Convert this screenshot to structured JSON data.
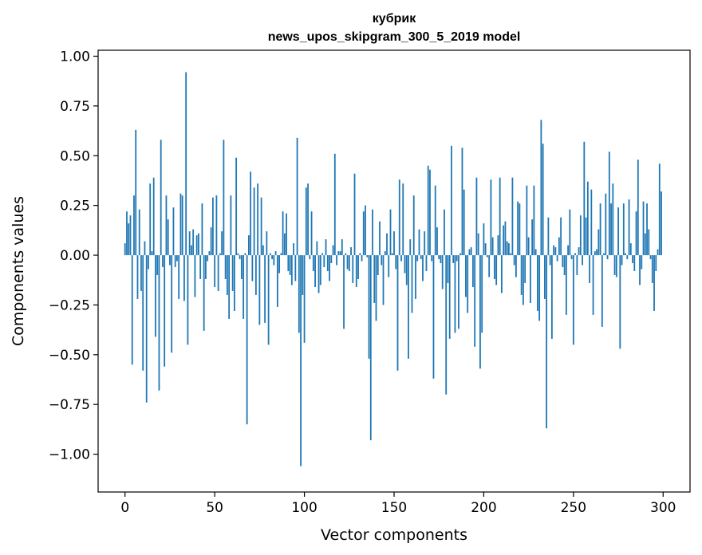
{
  "chart_data": {
    "type": "bar",
    "title_line1": "кубрик",
    "title_line2": "news_upos_skipgram_300_5_2019 model",
    "xlabel": "Vector components",
    "ylabel": "Components values",
    "xlim": [
      -15,
      315
    ],
    "ylim": [
      -1.19,
      1.03
    ],
    "xticks": [
      0,
      50,
      100,
      150,
      200,
      250,
      300
    ],
    "yticks": [
      -1.0,
      -0.75,
      -0.5,
      -0.25,
      0.0,
      0.25,
      0.5,
      0.75,
      1.0
    ],
    "xtick_labels": [
      "0",
      "50",
      "100",
      "150",
      "200",
      "250",
      "300"
    ],
    "ytick_labels": [
      "−1.00",
      "−0.75",
      "−0.50",
      "−0.25",
      "0.00",
      "0.25",
      "0.50",
      "0.75",
      "1.00"
    ],
    "bar_color": "#1f77b4",
    "grid": false,
    "values": [
      0.06,
      0.22,
      0.16,
      0.2,
      -0.55,
      0.3,
      0.63,
      -0.22,
      0.23,
      -0.18,
      -0.58,
      0.07,
      -0.74,
      -0.07,
      0.36,
      0.02,
      0.39,
      -0.41,
      -0.1,
      -0.68,
      0.58,
      -0.06,
      -0.56,
      0.3,
      0.18,
      -0.05,
      -0.49,
      0.24,
      -0.06,
      -0.03,
      -0.22,
      0.31,
      0.3,
      -0.23,
      0.92,
      -0.45,
      0.12,
      0.05,
      0.13,
      -0.21,
      0.1,
      0.11,
      -0.12,
      0.26,
      -0.38,
      -0.12,
      -0.03,
      0.02,
      0.14,
      0.29,
      -0.16,
      0.3,
      -0.18,
      0.01,
      0.12,
      0.58,
      -0.12,
      -0.2,
      -0.32,
      0.3,
      -0.18,
      -0.28,
      0.49,
      0.01,
      -0.02,
      -0.12,
      -0.32,
      0.01,
      -0.85,
      0.1,
      0.42,
      -0.13,
      0.34,
      -0.2,
      0.36,
      -0.35,
      0.29,
      0.05,
      -0.34,
      0.12,
      -0.45,
      0.01,
      -0.02,
      -0.05,
      0.02,
      -0.26,
      -0.09,
      0.01,
      0.22,
      0.11,
      0.21,
      -0.08,
      -0.1,
      -0.15,
      0.06,
      -0.13,
      0.59,
      -0.39,
      -1.06,
      -0.2,
      -0.44,
      0.34,
      0.36,
      -0.02,
      0.22,
      -0.08,
      -0.16,
      0.07,
      -0.19,
      -0.15,
      0.01,
      -0.06,
      0.08,
      -0.08,
      -0.13,
      -0.04,
      0.05,
      0.51,
      -0.05,
      0.02,
      0.02,
      0.08,
      -0.37,
      0.01,
      -0.07,
      -0.08,
      0.04,
      -0.14,
      0.41,
      -0.16,
      -0.12,
      0.01,
      -0.03,
      0.22,
      0.25,
      -0.01,
      -0.52,
      -0.93,
      0.23,
      -0.24,
      -0.33,
      -0.1,
      0.17,
      -0.05,
      -0.25,
      0.02,
      0.11,
      -0.11,
      0.23,
      0.01,
      0.12,
      -0.07,
      -0.58,
      0.38,
      -0.03,
      0.36,
      -0.09,
      -0.15,
      -0.52,
      0.08,
      -0.29,
      0.3,
      -0.22,
      -0.03,
      0.13,
      -0.02,
      -0.13,
      0.12,
      -0.08,
      0.45,
      0.43,
      -0.03,
      -0.62,
      0.35,
      0.14,
      -0.02,
      -0.04,
      -0.17,
      0.23,
      -0.7,
      -0.14,
      -0.42,
      0.55,
      -0.04,
      -0.39,
      -0.03,
      -0.37,
      0.01,
      0.54,
      0.33,
      -0.21,
      -0.29,
      0.03,
      0.04,
      -0.16,
      -0.46,
      0.39,
      0.11,
      -0.57,
      -0.39,
      0.16,
      0.06,
      -0.01,
      -0.11,
      0.38,
      0.09,
      -0.12,
      -0.15,
      0.1,
      0.39,
      -0.19,
      0.15,
      0.17,
      0.07,
      0.06,
      0.01,
      0.39,
      -0.05,
      -0.11,
      0.27,
      0.26,
      -0.2,
      -0.25,
      -0.14,
      0.35,
      0.09,
      -0.24,
      0.18,
      0.35,
      0.03,
      -0.28,
      -0.33,
      0.68,
      0.56,
      -0.22,
      -0.87,
      0.19,
      -0.05,
      -0.42,
      0.05,
      0.04,
      -0.03,
      0.09,
      0.19,
      -0.06,
      -0.1,
      -0.3,
      0.05,
      0.23,
      -0.02,
      -0.45,
      0.01,
      -0.1,
      0.04,
      0.2,
      -0.05,
      0.57,
      0.19,
      0.37,
      -0.14,
      0.33,
      -0.3,
      0.02,
      0.03,
      0.13,
      0.26,
      -0.36,
      0.01,
      0.31,
      -0.02,
      0.52,
      0.26,
      0.36,
      -0.1,
      -0.11,
      0.24,
      -0.47,
      -0.05,
      0.26,
      0.01,
      -0.02,
      0.28,
      0.06,
      -0.04,
      -0.08,
      0.22,
      0.48,
      -0.15,
      -0.07,
      0.27,
      0.11,
      0.26,
      0.13,
      -0.02,
      -0.14,
      -0.28,
      -0.08,
      0.03,
      0.46,
      0.32
    ]
  }
}
